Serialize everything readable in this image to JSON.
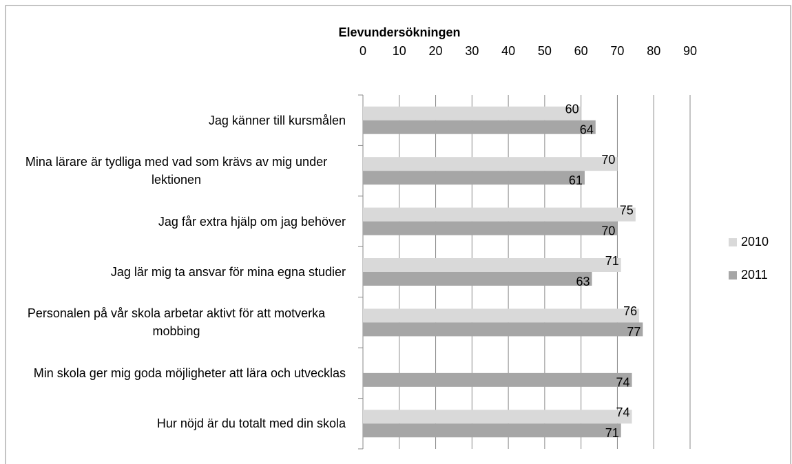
{
  "chart_data": {
    "type": "hbar",
    "title": "Elevundersökningen",
    "categories": [
      "Jag känner till kursmålen",
      "Mina lärare är tydliga med vad som krävs av mig under lektionen",
      "Jag får extra hjälp om jag behöver",
      "Jag lär mig ta ansvar för mina egna studier",
      "Personalen på vår skola arbetar aktivt för att motverka mobbing",
      "Min skola ger mig goda möjligheter att lära och utvecklas",
      "Hur nöjd är du totalt med din skola"
    ],
    "series": [
      {
        "name": "2010",
        "color": "#d9d9d9",
        "values": [
          60,
          70,
          75,
          71,
          76,
          null,
          74
        ]
      },
      {
        "name": "2011",
        "color": "#a6a6a6",
        "values": [
          64,
          61,
          70,
          63,
          77,
          74,
          71
        ]
      }
    ],
    "xlim": [
      0,
      90
    ],
    "xticks": [
      0,
      10,
      20,
      30,
      40,
      50,
      60,
      70,
      80,
      90
    ],
    "grid": true,
    "legend": "right"
  }
}
